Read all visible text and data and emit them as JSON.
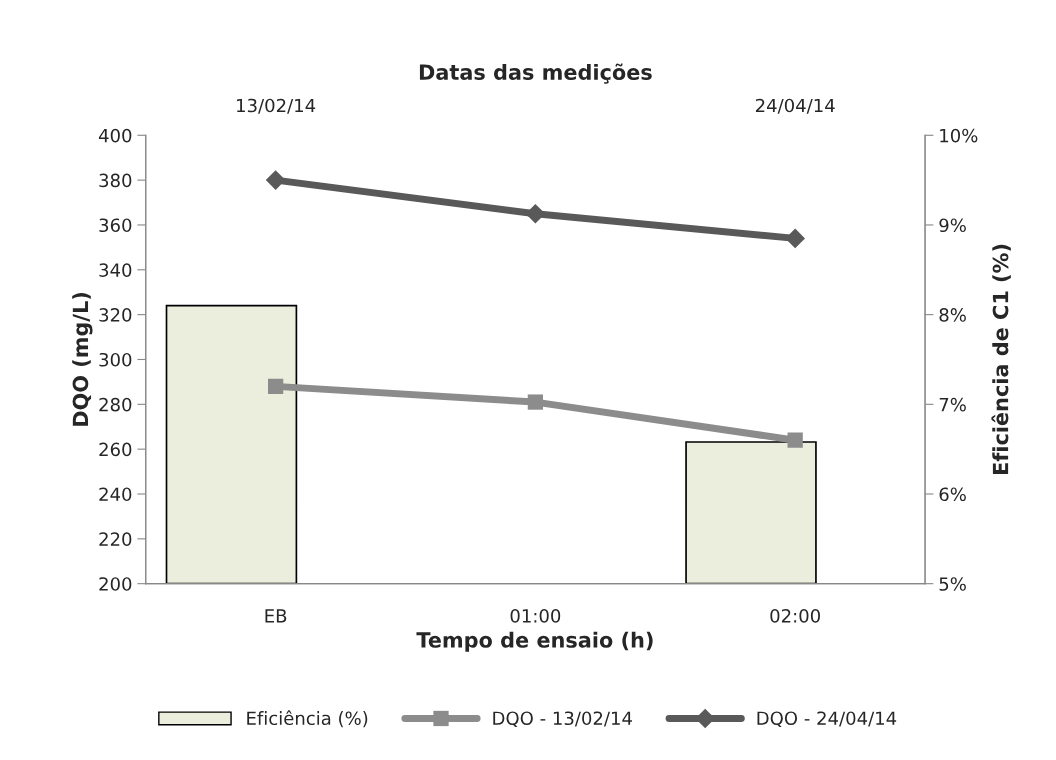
{
  "chart_data": {
    "type": "line",
    "title": "Datas das medições",
    "xlabel": "Tempo de ensaio (h)",
    "ylabel": "DQO (mg/L)",
    "y2label": "Eficiência de C1 (%)",
    "categories": [
      "EB",
      "01:00",
      "02:00"
    ],
    "annotations": [
      "13/02/14",
      "24/04/14"
    ],
    "series": [
      {
        "type": "bar",
        "name": "Eficiência (%)",
        "color": "#ebeedd",
        "axis": "y2",
        "values": [
          8.1,
          null,
          6.58
        ]
      },
      {
        "name": "DQO - 13/02/14",
        "color": "#8c8c8c",
        "marker": "square",
        "values": [
          288,
          281,
          264
        ]
      },
      {
        "name": "DQO - 24/04/14",
        "color": "#595959",
        "marker": "diamond",
        "values": [
          380,
          365,
          354
        ]
      }
    ],
    "ylim": [
      200,
      400
    ],
    "yticks": [
      200,
      220,
      240,
      260,
      280,
      300,
      320,
      340,
      360,
      380,
      400
    ],
    "y2lim": [
      5,
      10
    ],
    "y2ticks": [
      {
        "value": 5,
        "label": "5%"
      },
      {
        "value": 6,
        "label": "6%"
      },
      {
        "value": 7,
        "label": "7%"
      },
      {
        "value": 8,
        "label": "8%"
      },
      {
        "value": 9,
        "label": "9%"
      },
      {
        "value": 10,
        "label": "10%"
      }
    ],
    "grid": false,
    "legend": "bottom",
    "line_style": "solid"
  }
}
